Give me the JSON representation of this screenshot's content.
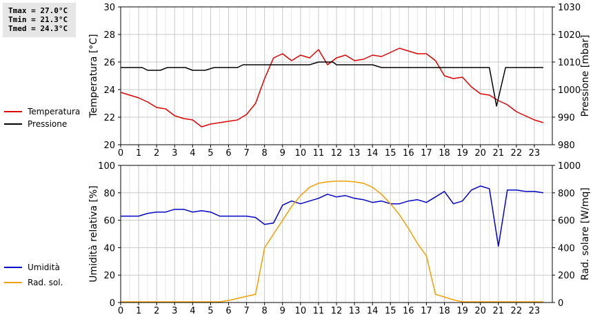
{
  "stats": {
    "tmax": "Tmax = 27.0°C",
    "tmin": "Tmin = 21.3°C",
    "tmed": "Tmed = 24.3°C"
  },
  "colors": {
    "temperature": "#e00000",
    "pressure": "#000000",
    "humidity": "#0000c8",
    "radiation": "#f0a000",
    "grid": "#c8c8c8"
  },
  "chart_data": [
    {
      "type": "line",
      "xlim": [
        0,
        24
      ],
      "x_ticks": [
        0,
        1,
        2,
        3,
        4,
        5,
        6,
        7,
        8,
        9,
        10,
        11,
        12,
        13,
        14,
        15,
        16,
        17,
        18,
        19,
        20,
        21,
        22,
        23
      ],
      "left_axis": {
        "label": "Temperatura [°C]",
        "ylim": [
          20,
          30
        ],
        "ticks": [
          20,
          22,
          24,
          26,
          28,
          30
        ]
      },
      "right_axis": {
        "label": "Pressione [mbar]",
        "ylim": [
          980,
          1030
        ],
        "ticks": [
          980,
          990,
          1000,
          1010,
          1020,
          1030
        ]
      },
      "grid": true,
      "legend": {
        "position": "left",
        "entries": [
          "Temperatura",
          "Pressione"
        ]
      },
      "series": [
        {
          "name": "Temperatura",
          "axis": "left",
          "color_key": "temperature",
          "x": [
            0,
            0.5,
            1,
            1.5,
            2,
            2.5,
            3,
            3.5,
            4,
            4.5,
            5,
            5.5,
            6,
            6.5,
            7,
            7.5,
            8,
            8.5,
            9,
            9.5,
            10,
            10.5,
            11,
            11.5,
            12,
            12.5,
            13,
            13.5,
            14,
            14.5,
            15,
            15.5,
            16,
            16.5,
            17,
            17.5,
            18,
            18.5,
            19,
            19.5,
            20,
            20.5,
            21,
            21.5,
            22,
            22.5,
            23,
            23.5
          ],
          "values": [
            23.8,
            23.6,
            23.4,
            23.1,
            22.7,
            22.6,
            22.1,
            21.9,
            21.8,
            21.3,
            21.5,
            21.6,
            21.7,
            21.8,
            22.2,
            23.0,
            24.8,
            26.3,
            26.6,
            26.1,
            26.5,
            26.3,
            26.9,
            25.8,
            26.3,
            26.5,
            26.1,
            26.2,
            26.5,
            26.4,
            26.7,
            27.0,
            26.8,
            26.6,
            26.6,
            26.1,
            25.0,
            24.8,
            24.9,
            24.2,
            23.7,
            23.6,
            23.2,
            22.9,
            22.4,
            22.1,
            21.8,
            21.6
          ]
        },
        {
          "name": "Pressione",
          "axis": "right",
          "color_key": "pressure",
          "x": [
            0,
            1.2,
            1.5,
            2.2,
            2.6,
            3.6,
            4.0,
            4.7,
            5.2,
            6.5,
            6.8,
            8.0,
            10.5,
            11.0,
            11.8,
            12.0,
            14.0,
            14.5,
            20.5,
            20.9,
            21.4,
            23.5
          ],
          "values": [
            1008,
            1008,
            1007,
            1007,
            1008,
            1008,
            1007,
            1007,
            1008,
            1008,
            1009,
            1009,
            1009,
            1010,
            1010,
            1009,
            1009,
            1008,
            1008,
            994,
            1008,
            1008
          ]
        }
      ]
    },
    {
      "type": "line",
      "xlim": [
        0,
        24
      ],
      "x_ticks": [
        0,
        1,
        2,
        3,
        4,
        5,
        6,
        7,
        8,
        9,
        10,
        11,
        12,
        13,
        14,
        15,
        16,
        17,
        18,
        19,
        20,
        21,
        22,
        23
      ],
      "left_axis": {
        "label": "Umidità relativa [%]",
        "ylim": [
          0,
          100
        ],
        "ticks": [
          0,
          20,
          40,
          60,
          80,
          100
        ]
      },
      "right_axis": {
        "label": "Rad. solare [W/mq]",
        "ylim": [
          0,
          1000
        ],
        "ticks": [
          0,
          200,
          400,
          600,
          800,
          1000
        ]
      },
      "grid": true,
      "legend": {
        "position": "left",
        "entries": [
          "Umidità",
          "Rad. sol."
        ]
      },
      "series": [
        {
          "name": "Umidità",
          "axis": "left",
          "color_key": "humidity",
          "x": [
            0,
            1,
            1.5,
            2,
            2.5,
            3,
            3.5,
            4,
            4.5,
            5,
            5.5,
            6,
            7,
            7.5,
            8,
            8.5,
            9,
            9.5,
            10,
            10.5,
            11,
            11.5,
            12,
            12.5,
            13,
            13.5,
            14,
            14.5,
            15,
            15.5,
            16,
            16.5,
            17,
            17.5,
            18,
            18.5,
            19,
            19.5,
            20,
            20.5,
            21,
            21.5,
            22,
            22.5,
            23,
            23.5
          ],
          "values": [
            63,
            63,
            65,
            66,
            66,
            68,
            68,
            66,
            67,
            66,
            63,
            63,
            63,
            62,
            57,
            58,
            71,
            74,
            72,
            74,
            76,
            79,
            77,
            78,
            76,
            75,
            73,
            74,
            72,
            72,
            74,
            75,
            73,
            77,
            81,
            72,
            74,
            82,
            85,
            83,
            41,
            82,
            82,
            81,
            81,
            80
          ]
        },
        {
          "name": "Rad. sol.",
          "axis": "right",
          "color_key": "radiation",
          "x": [
            0,
            5.5,
            6,
            6.5,
            7,
            7.5,
            8,
            8.5,
            9,
            9.5,
            10,
            10.5,
            11,
            11.5,
            12,
            12.5,
            13,
            13.5,
            14,
            14.5,
            15,
            15.5,
            16,
            16.5,
            17,
            17.5,
            18,
            18.5,
            19,
            20,
            21,
            22,
            23,
            23.5
          ],
          "values": [
            5,
            5,
            15,
            30,
            45,
            60,
            400,
            500,
            600,
            700,
            780,
            840,
            870,
            880,
            885,
            885,
            880,
            870,
            840,
            790,
            720,
            640,
            540,
            430,
            340,
            60,
            40,
            20,
            5,
            5,
            5,
            5,
            5,
            5
          ]
        }
      ]
    }
  ]
}
